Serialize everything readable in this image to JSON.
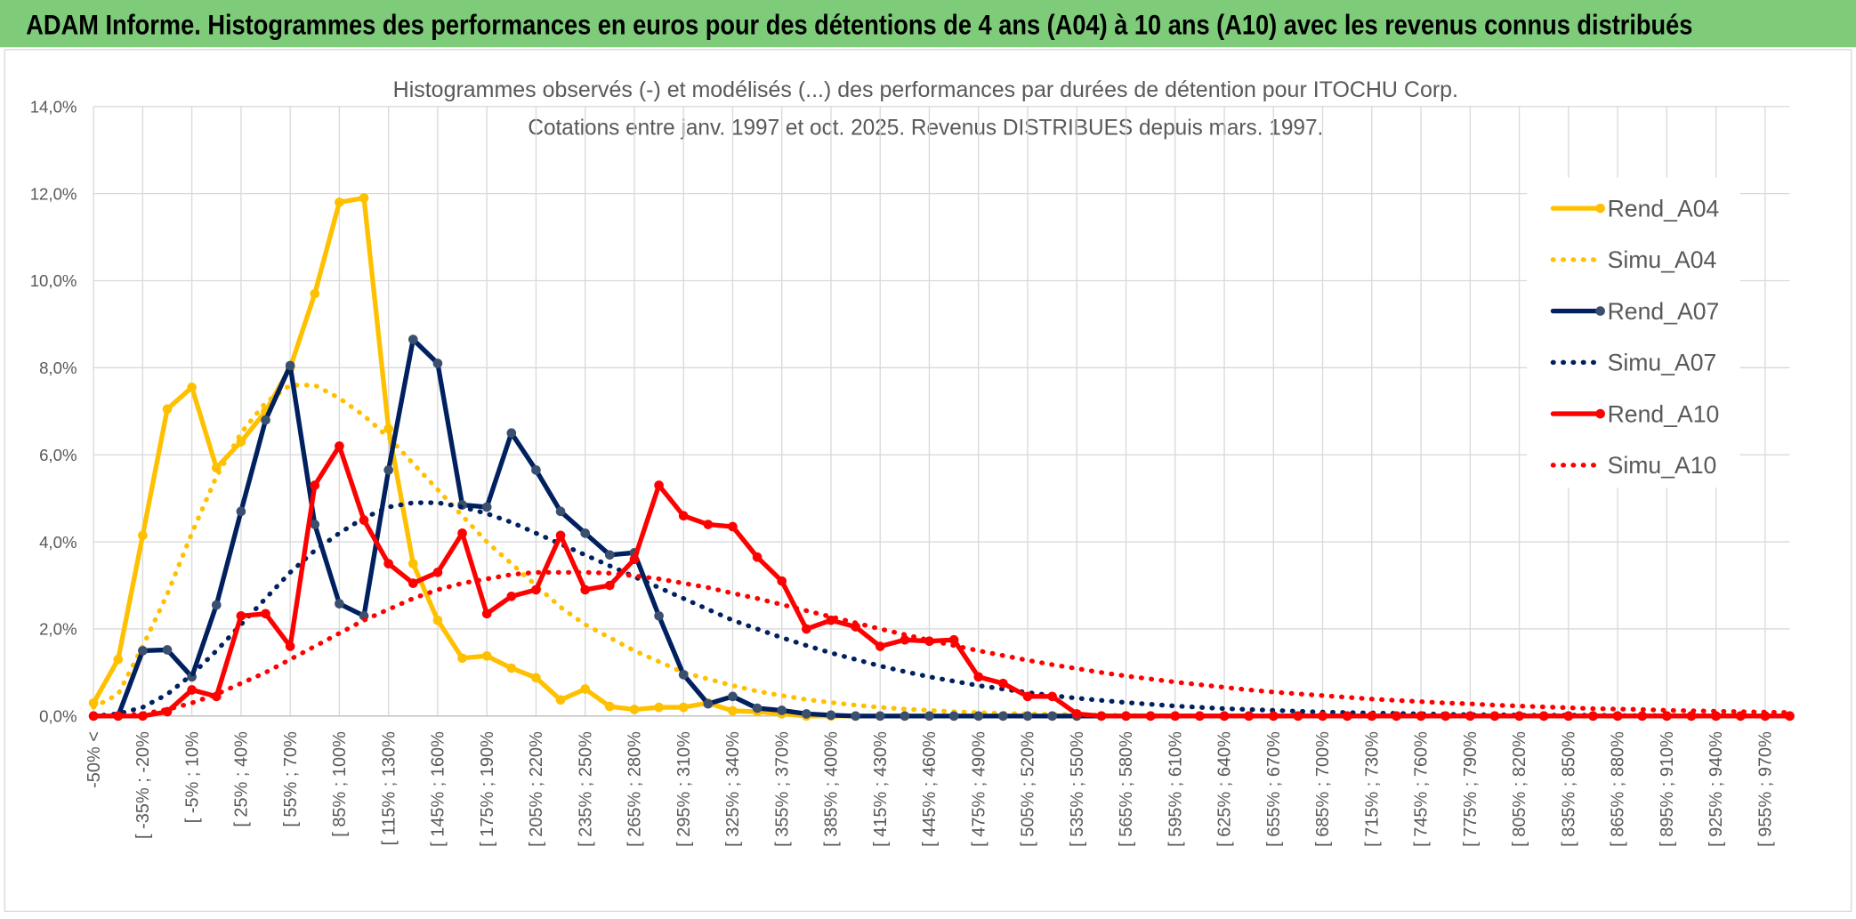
{
  "header": {
    "title": "ADAM Informe. Histogrammes des performances en euros pour des détentions de 4 ans (A04) à 10 ans (A10) avec les revenus connus distribués"
  },
  "chart_data": {
    "type": "line",
    "title": "Histogrammes observés (-) et modélisés (...) des performances par durées de détention pour ITOCHU Corp.",
    "subtitle": "Cotations entre janv. 1997 et oct. 2025. Revenus DISTRIBUES depuis mars. 1997.",
    "categories": [
      "-50% <",
      null,
      "[ -35% ; -20%",
      null,
      "[ -5% ; 10%",
      null,
      "[ 25% ; 40%",
      null,
      "[ 55% ; 70%",
      null,
      "[ 85% ; 100%",
      null,
      "[ 115% ; 130%",
      null,
      "[ 145% ; 160%",
      null,
      "[ 175% ; 190%",
      null,
      "[ 205% ; 220%",
      null,
      "[ 235% ; 250%",
      null,
      "[ 265% ; 280%",
      null,
      "[ 295% ; 310%",
      null,
      "[ 325% ; 340%",
      null,
      "[ 355% ; 370%",
      null,
      "[ 385% ; 400%",
      null,
      "[ 415% ; 430%",
      null,
      "[ 445% ; 460%",
      null,
      "[ 475% ; 490%",
      null,
      "[ 505% ; 520%",
      null,
      "[ 535% ; 550%",
      null,
      "[ 565% ; 580%",
      null,
      "[ 595% ; 610%",
      null,
      "[ 625% ; 640%",
      null,
      "[ 655% ; 670%",
      null,
      "[ 685% ; 700%",
      null,
      "[ 715% ; 730%",
      null,
      "[ 745% ; 760%",
      null,
      "[ 775% ; 790%",
      null,
      "[ 805% ; 820%",
      null,
      "[ 835% ; 850%",
      null,
      "[ 865% ; 880%",
      null,
      "[ 895% ; 910%",
      null,
      "[ 925% ; 940%",
      null,
      "[ 955% ; 970%",
      null
    ],
    "series": [
      {
        "name": "Rend_A04",
        "color": "#ffc000",
        "style": "solid",
        "marker": true,
        "values": [
          0.3,
          1.3,
          4.15,
          7.05,
          7.55,
          5.7,
          6.3,
          7.0,
          8.0,
          9.7,
          11.8,
          11.9,
          6.6,
          3.5,
          2.2,
          1.33,
          1.38,
          1.1,
          0.88,
          0.37,
          0.62,
          0.22,
          0.15,
          0.2,
          0.2,
          0.3,
          0.12,
          0.1,
          0.05,
          0,
          0,
          0,
          0,
          0,
          0,
          0,
          0,
          0,
          0,
          0,
          0,
          0,
          0,
          0,
          0,
          0,
          0,
          0,
          0,
          0,
          0,
          0,
          0,
          0,
          0,
          0,
          0,
          0,
          0,
          0,
          0,
          0,
          0,
          0,
          0,
          0,
          0,
          0,
          0,
          0
        ]
      },
      {
        "name": "Simu_A04",
        "color": "#ffc000",
        "style": "dotted",
        "marker": false,
        "values": [
          0.2,
          0.5,
          1.6,
          2.8,
          4.2,
          5.5,
          6.5,
          7.2,
          7.6,
          7.6,
          7.3,
          6.9,
          6.4,
          5.8,
          5.2,
          4.6,
          4.0,
          3.5,
          3.0,
          2.5,
          2.1,
          1.8,
          1.5,
          1.25,
          1.0,
          0.85,
          0.7,
          0.57,
          0.47,
          0.38,
          0.31,
          0.25,
          0.2,
          0.16,
          0.13,
          0.1,
          0.08,
          0.06,
          0.05,
          0.04,
          0.03,
          0.02,
          0.02,
          0,
          0,
          0,
          0,
          0,
          0,
          0,
          0,
          0,
          0,
          0,
          0,
          0,
          0,
          0,
          0,
          0,
          0,
          0,
          0,
          0,
          0,
          0,
          0,
          0,
          0,
          0
        ]
      },
      {
        "name": "Rend_A07",
        "color": "#002060",
        "style": "solid",
        "marker": true,
        "values": [
          0,
          0,
          1.5,
          1.52,
          0.9,
          2.55,
          4.7,
          6.8,
          8.05,
          4.4,
          2.58,
          2.3,
          5.65,
          8.65,
          8.1,
          4.85,
          4.8,
          6.5,
          5.65,
          4.7,
          4.2,
          3.7,
          3.75,
          2.3,
          0.95,
          0.28,
          0.45,
          0.18,
          0.13,
          0.05,
          0.02,
          0,
          0,
          0,
          0,
          0,
          0,
          0,
          0,
          0,
          0,
          0,
          0,
          0,
          0,
          0,
          0,
          0,
          0,
          0,
          0,
          0,
          0,
          0,
          0,
          0,
          0,
          0,
          0,
          0,
          0,
          0,
          0,
          0,
          0,
          0,
          0,
          0,
          0,
          0
        ]
      },
      {
        "name": "Simu_A07",
        "color": "#002060",
        "style": "dotted",
        "marker": false,
        "values": [
          0,
          0.05,
          0.2,
          0.5,
          0.95,
          1.5,
          2.1,
          2.7,
          3.3,
          3.8,
          4.2,
          4.55,
          4.8,
          4.9,
          4.9,
          4.8,
          4.65,
          4.45,
          4.2,
          3.95,
          3.7,
          3.45,
          3.2,
          2.95,
          2.7,
          2.45,
          2.2,
          2.0,
          1.8,
          1.62,
          1.45,
          1.3,
          1.15,
          1.02,
          0.9,
          0.8,
          0.7,
          0.62,
          0.54,
          0.47,
          0.41,
          0.36,
          0.31,
          0.27,
          0.23,
          0.2,
          0.17,
          0.15,
          0.13,
          0.11,
          0.09,
          0.08,
          0.07,
          0.06,
          0.05,
          0.04,
          0.03,
          0.03,
          0.02,
          0.02,
          0.02,
          0.02,
          0.01,
          0.01,
          0.01,
          0.01,
          0.01,
          0.01,
          0.01,
          0.01
        ]
      },
      {
        "name": "Rend_A10",
        "color": "#ff0000",
        "style": "solid",
        "marker": true,
        "values": [
          0,
          0,
          0,
          0.1,
          0.6,
          0.45,
          2.3,
          2.35,
          1.6,
          5.3,
          6.2,
          4.5,
          3.5,
          3.05,
          3.3,
          4.2,
          2.35,
          2.75,
          2.9,
          4.15,
          2.9,
          3.0,
          3.6,
          5.3,
          4.6,
          4.4,
          4.35,
          3.65,
          3.1,
          2.0,
          2.2,
          2.05,
          1.6,
          1.75,
          1.72,
          1.75,
          0.9,
          0.75,
          0.45,
          0.45,
          0.05,
          0,
          0,
          0,
          0,
          0,
          0,
          0,
          0,
          0,
          0,
          0,
          0,
          0,
          0,
          0,
          0,
          0,
          0,
          0,
          0,
          0,
          0,
          0,
          0,
          0,
          0,
          0,
          0,
          0
        ]
      },
      {
        "name": "Simu_A10",
        "color": "#ff0000",
        "style": "dotted",
        "marker": false,
        "values": [
          0,
          0,
          0.05,
          0.15,
          0.3,
          0.5,
          0.75,
          1.0,
          1.3,
          1.6,
          1.9,
          2.2,
          2.45,
          2.7,
          2.9,
          3.05,
          3.15,
          3.25,
          3.3,
          3.3,
          3.3,
          3.28,
          3.22,
          3.15,
          3.05,
          2.95,
          2.82,
          2.7,
          2.56,
          2.42,
          2.28,
          2.14,
          2.0,
          1.87,
          1.74,
          1.62,
          1.5,
          1.39,
          1.28,
          1.18,
          1.09,
          1.0,
          0.92,
          0.85,
          0.78,
          0.72,
          0.66,
          0.6,
          0.55,
          0.51,
          0.47,
          0.43,
          0.39,
          0.36,
          0.33,
          0.3,
          0.28,
          0.25,
          0.23,
          0.21,
          0.19,
          0.17,
          0.16,
          0.15,
          0.13,
          0.12,
          0.11,
          0.1,
          0.09,
          0.08
        ]
      }
    ],
    "ylim": [
      0,
      14
    ],
    "yticks": [
      {
        "value": 0,
        "label": "0,0%"
      },
      {
        "value": 2,
        "label": "2,0%"
      },
      {
        "value": 4,
        "label": "4,0%"
      },
      {
        "value": 6,
        "label": "6,0%"
      },
      {
        "value": 8,
        "label": "8,0%"
      },
      {
        "value": 10,
        "label": "10,0%"
      },
      {
        "value": 12,
        "label": "12,0%"
      },
      {
        "value": 14,
        "label": "14,0%"
      }
    ],
    "grid": true,
    "legend": "right"
  }
}
